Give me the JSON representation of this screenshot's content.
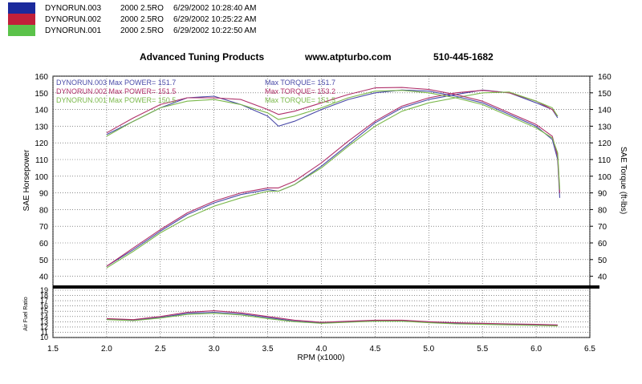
{
  "legend": [
    {
      "name": "DYNORUN.003",
      "car": "2000 2.5RO",
      "datetime": "6/29/2002 10:28:40 AM",
      "color": "#2b35a8",
      "swatch": "#1b2a9c"
    },
    {
      "name": "DYNORUN.002",
      "car": "2000 2.5RO",
      "datetime": "6/29/2002 10:25:22 AM",
      "color": "#b0306a",
      "swatch": "#c1203a"
    },
    {
      "name": "DYNORUN.001",
      "car": "2000 2.5RO",
      "datetime": "6/29/2002 10:22:50 AM",
      "color": "#7ab84a",
      "swatch": "#5bc24a"
    }
  ],
  "header": {
    "company": "Advanced Tuning Products",
    "website": "www.atpturbo.com",
    "phone": "510-445-1682"
  },
  "maxes": [
    {
      "power_label": "DYNORUN.003  Max POWER= 151.7",
      "torque_label": "Max TORQUE= 151.7",
      "color": "#4a4aa8"
    },
    {
      "power_label": "DYNORUN.002  Max POWER= 151.5",
      "torque_label": "Max TORQUE= 153.2",
      "color": "#b0306a"
    },
    {
      "power_label": "DYNORUN.001  Max POWER= 150.5",
      "torque_label": "Max TORQUE= 151.5",
      "color": "#7ab84a"
    }
  ],
  "chart_data": [
    {
      "type": "line",
      "title": "",
      "xlabel": "RPM (x1000)",
      "ylabel": "SAE Horsepower",
      "y2label": "SAE Torque (ft-lbs)",
      "xlim": [
        1.5,
        6.5
      ],
      "xticks": [
        "1.5",
        "2.0",
        "2.5",
        "3.0",
        "3.5",
        "4.0",
        "4.5",
        "5.0",
        "5.5",
        "6.0",
        "6.5"
      ],
      "ylim": [
        35,
        160
      ],
      "yticks": [
        "40",
        "50",
        "60",
        "70",
        "80",
        "90",
        "100",
        "110",
        "120",
        "130",
        "140",
        "150",
        "160"
      ],
      "y2lim": [
        35,
        160
      ],
      "y2ticks": [
        "40",
        "50",
        "60",
        "70",
        "80",
        "90",
        "100",
        "110",
        "120",
        "130",
        "140",
        "150",
        "160"
      ],
      "grid": true,
      "series": [
        {
          "name": "DYNORUN.003",
          "kind": "power",
          "color": "#4a4aa8",
          "x": [
            2.0,
            2.25,
            2.5,
            2.75,
            3.0,
            3.25,
            3.5,
            3.6,
            3.75,
            4.0,
            4.25,
            4.5,
            4.75,
            5.0,
            5.25,
            5.5,
            5.75,
            6.0,
            6.15,
            6.2
          ],
          "y": [
            46,
            56,
            67,
            77,
            84,
            89,
            92,
            91,
            95,
            106,
            119,
            132,
            141,
            146,
            149,
            151.7,
            150,
            144,
            140,
            135
          ]
        },
        {
          "name": "DYNORUN.002",
          "kind": "power",
          "color": "#b0306a",
          "x": [
            2.0,
            2.25,
            2.5,
            2.75,
            3.0,
            3.25,
            3.5,
            3.6,
            3.75,
            4.0,
            4.25,
            4.5,
            4.75,
            5.0,
            5.25,
            5.5,
            5.75,
            6.0,
            6.15,
            6.2
          ],
          "y": [
            46,
            57,
            68,
            78,
            85,
            90,
            93,
            93,
            97,
            108,
            121,
            133,
            142,
            147,
            150,
            151.5,
            150,
            145,
            140,
            136
          ]
        },
        {
          "name": "DYNORUN.001",
          "kind": "power",
          "color": "#7ab84a",
          "x": [
            2.0,
            2.25,
            2.5,
            2.75,
            3.0,
            3.25,
            3.5,
            3.6,
            3.75,
            4.0,
            4.25,
            4.5,
            4.75,
            5.0,
            5.25,
            5.5,
            5.75,
            6.0,
            6.15,
            6.2
          ],
          "y": [
            45,
            55,
            66,
            75,
            82,
            87,
            91,
            91,
            95,
            105,
            118,
            130,
            139,
            144,
            147,
            150,
            150.5,
            145,
            141,
            136
          ]
        },
        {
          "name": "DYNORUN.003",
          "kind": "torque",
          "color": "#4a4aa8",
          "x": [
            2.0,
            2.25,
            2.5,
            2.75,
            3.0,
            3.25,
            3.5,
            3.6,
            3.75,
            4.0,
            4.25,
            4.5,
            4.75,
            5.0,
            5.25,
            5.5,
            5.75,
            6.0,
            6.15,
            6.2,
            6.22
          ],
          "y": [
            125,
            133,
            141,
            147,
            148,
            143,
            136,
            130,
            133,
            140,
            146,
            150,
            151.7,
            151,
            148,
            144,
            137,
            130,
            122,
            110,
            87
          ]
        },
        {
          "name": "DYNORUN.002",
          "kind": "torque",
          "color": "#b0306a",
          "x": [
            2.0,
            2.25,
            2.5,
            2.75,
            3.0,
            3.25,
            3.5,
            3.6,
            3.75,
            4.0,
            4.25,
            4.5,
            4.75,
            5.0,
            5.25,
            5.5,
            5.75,
            6.0,
            6.15,
            6.2,
            6.22
          ],
          "y": [
            126,
            135,
            143,
            147,
            147,
            146,
            140,
            137,
            139,
            144,
            149,
            153,
            153.2,
            152,
            149,
            145,
            138,
            131,
            124,
            112,
            90
          ]
        },
        {
          "name": "DYNORUN.001",
          "kind": "torque",
          "color": "#7ab84a",
          "x": [
            2.0,
            2.25,
            2.5,
            2.75,
            3.0,
            3.25,
            3.5,
            3.6,
            3.75,
            4.0,
            4.25,
            4.5,
            4.75,
            5.0,
            5.25,
            5.5,
            5.75,
            6.0,
            6.15,
            6.2,
            6.22
          ],
          "y": [
            124,
            133,
            141,
            145,
            146,
            143,
            138,
            134,
            136,
            141,
            147,
            151,
            151.5,
            150,
            147,
            143,
            136,
            129,
            123,
            114,
            92
          ]
        }
      ]
    },
    {
      "type": "line",
      "title": "",
      "xlabel": "RPM (x1000)",
      "ylabel": "Air Fuel Ratio",
      "xlim": [
        1.5,
        6.5
      ],
      "ylim": [
        10,
        19
      ],
      "yticks": [
        "10",
        "11",
        "12",
        "13",
        "14",
        "15",
        "16",
        "17",
        "18",
        "19"
      ],
      "grid": true,
      "series": [
        {
          "name": "DYNORUN.003",
          "color": "#4a4aa8",
          "x": [
            2.0,
            2.25,
            2.5,
            2.75,
            3.0,
            3.25,
            3.5,
            3.75,
            4.0,
            4.25,
            4.5,
            4.75,
            5.0,
            5.25,
            5.5,
            5.75,
            6.0,
            6.2
          ],
          "y": [
            13.5,
            13.3,
            13.8,
            14.6,
            14.8,
            14.5,
            13.8,
            13.1,
            12.8,
            13.0,
            13.2,
            13.2,
            12.9,
            12.7,
            12.6,
            12.5,
            12.4,
            12.3
          ]
        },
        {
          "name": "DYNORUN.002",
          "color": "#b0306a",
          "x": [
            2.0,
            2.25,
            2.5,
            2.75,
            3.0,
            3.25,
            3.5,
            3.75,
            4.0,
            4.25,
            4.5,
            4.75,
            5.0,
            5.25,
            5.5,
            5.75,
            6.0,
            6.2
          ],
          "y": [
            13.6,
            13.4,
            14.0,
            14.8,
            15.1,
            14.7,
            14.0,
            13.3,
            12.9,
            13.1,
            13.3,
            13.3,
            13.0,
            12.8,
            12.7,
            12.6,
            12.5,
            12.4
          ]
        },
        {
          "name": "DYNORUN.001",
          "color": "#7ab84a",
          "x": [
            2.0,
            2.25,
            2.5,
            2.75,
            3.0,
            3.25,
            3.5,
            3.75,
            4.0,
            4.25,
            4.5,
            4.75,
            5.0,
            5.25,
            5.5,
            5.75,
            6.0,
            6.2
          ],
          "y": [
            13.4,
            13.2,
            13.7,
            14.4,
            14.6,
            14.3,
            13.6,
            13.0,
            12.7,
            12.9,
            13.1,
            13.1,
            12.8,
            12.6,
            12.5,
            12.4,
            12.3,
            12.2
          ]
        }
      ]
    }
  ]
}
